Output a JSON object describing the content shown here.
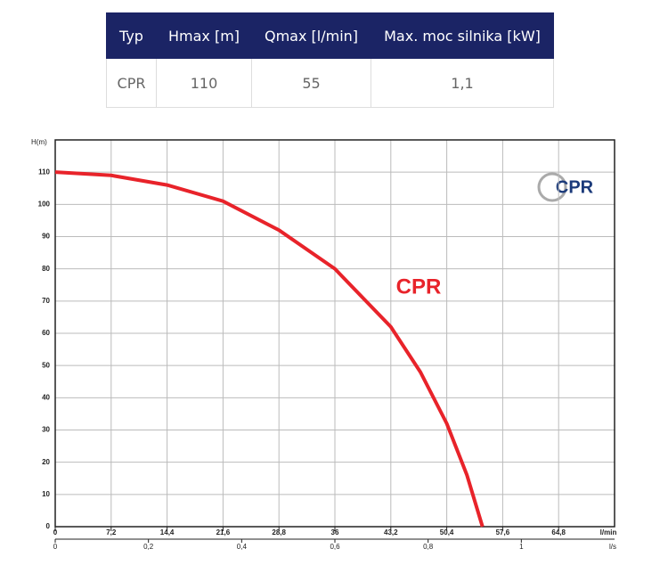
{
  "table": {
    "headers": [
      "Typ",
      "Hmax [m]",
      "Qmax [l/min]",
      "Max. moc silnika [kW]"
    ],
    "rows": [
      [
        "CPR",
        "110",
        "55",
        "1,1"
      ]
    ]
  },
  "chart_data": {
    "type": "line",
    "y_label": "H(m)",
    "x_label": "l/min",
    "x2_label": "l/s",
    "logo": "CPR",
    "x": [
      0,
      7.2,
      14.4,
      21.6,
      28.8,
      36,
      43.2,
      47,
      50.4,
      53,
      55
    ],
    "series": [
      {
        "name": "CPR",
        "color": "#e8232a",
        "values": [
          110,
          109,
          106,
          101,
          92,
          80,
          62,
          48,
          32,
          16,
          0
        ]
      }
    ],
    "xlim": [
      0,
      72
    ],
    "xticks": [
      0,
      {
        "value": 7.2,
        "label": "7,2"
      },
      {
        "value": 14.4,
        "label": "14,4"
      },
      {
        "value": 21.6,
        "label": "21,6"
      },
      {
        "value": 28.8,
        "label": "28,8"
      },
      36,
      {
        "value": 43.2,
        "label": "43,2"
      },
      {
        "value": 50.4,
        "label": "50,4"
      },
      {
        "value": 57.6,
        "label": "57,6"
      },
      {
        "value": 64.8,
        "label": "64,8"
      }
    ],
    "x2lim": [
      0,
      1.2
    ],
    "x2ticks": [
      0,
      {
        "value": 0.2,
        "label": "0,2"
      },
      {
        "value": 0.4,
        "label": "0,4"
      },
      {
        "value": 0.6,
        "label": "0,6"
      },
      {
        "value": 0.8,
        "label": "0,8"
      },
      1
    ],
    "ylim": [
      0,
      120
    ],
    "yticks": [
      0,
      10,
      20,
      30,
      40,
      50,
      60,
      70,
      80,
      90,
      100,
      110
    ],
    "grid": true
  }
}
